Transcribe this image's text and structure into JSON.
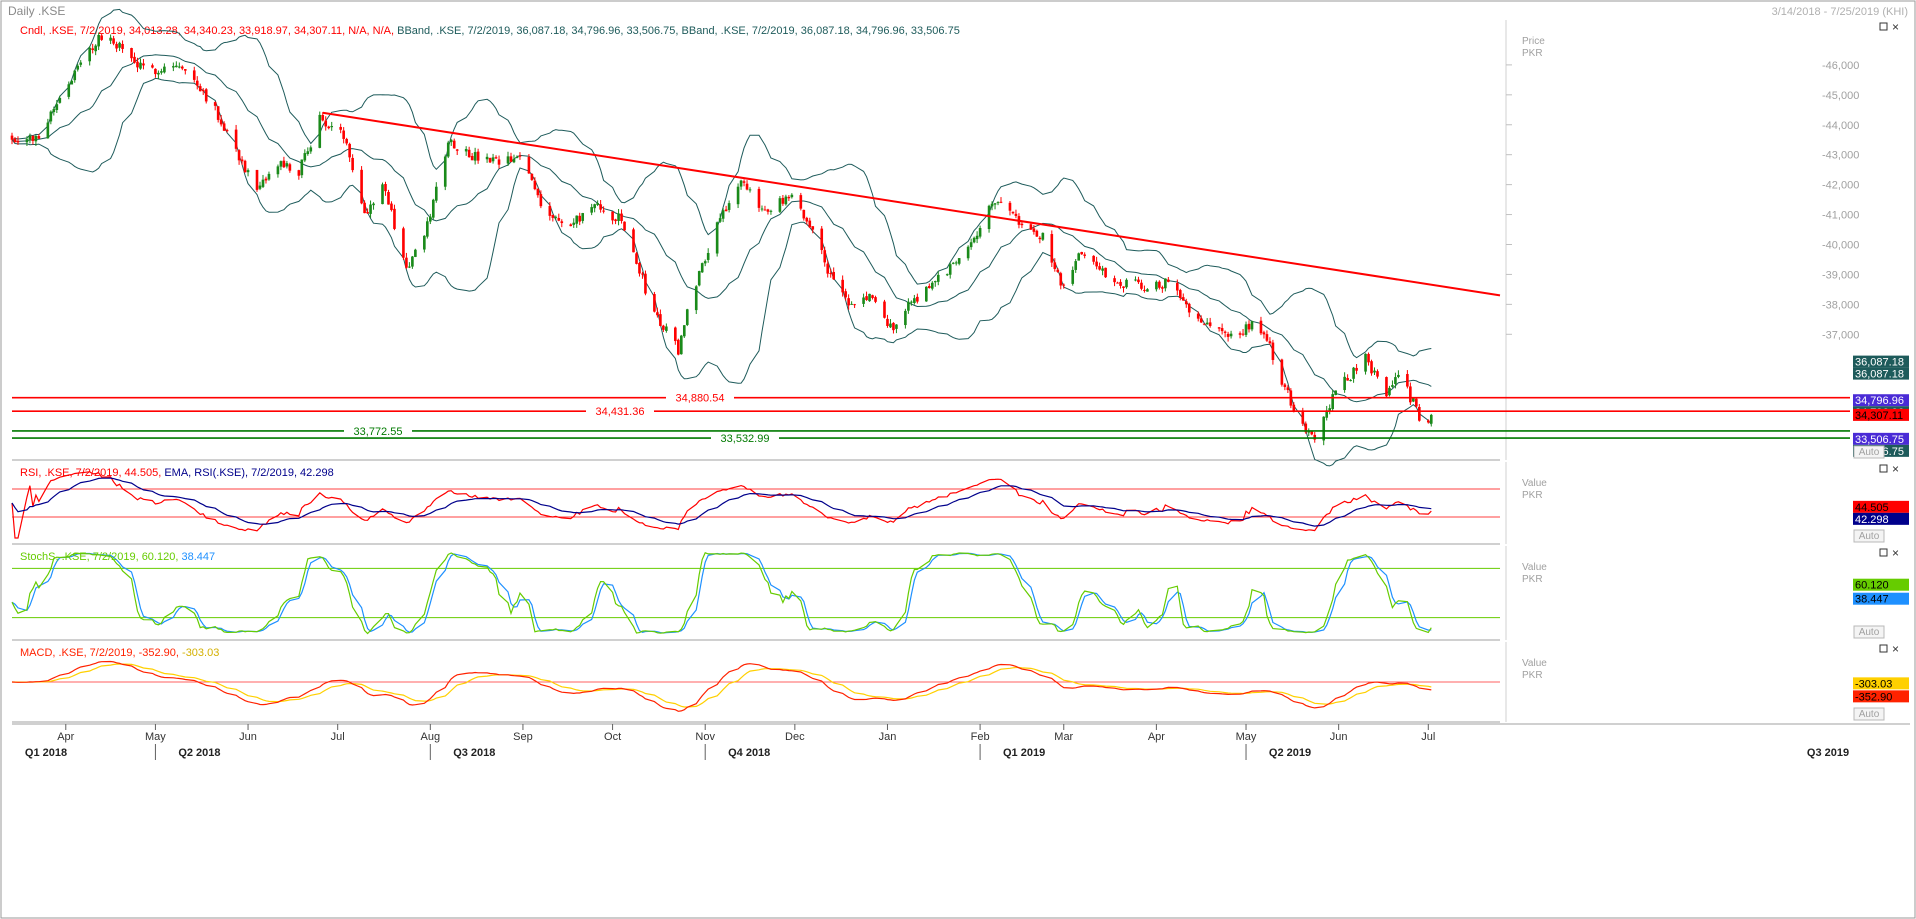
{
  "window": {
    "title": "Daily .KSE",
    "date_range": "3/14/2018 - 7/25/2019 (KHI)"
  },
  "colors": {
    "up_candle": "#1a8a1a",
    "down_candle": "#ff0000",
    "bband": "#1e5b5b",
    "resistance": "#ff0000",
    "support": "#007a00",
    "rsi": "#ff0000",
    "rsi_ema": "#00008b",
    "stoch_k": "#66cc00",
    "stoch_d": "#1e90ff",
    "macd": "#ff2200",
    "macd_signal": "#ffd000"
  },
  "chart_data": [
    {
      "type": "candlestick",
      "panel": "price",
      "legend": {
        "cndl": "Cndl, .KSE, 7/2/2019, 34,013.28, 34,340.23, 33,918.97, 34,307.11, N/A, N/A,",
        "bband1": "BBand, .KSE, 7/2/2019, 36,087.18, 34,796.96, 33,506.75,",
        "bband2": "BBand, .KSE, 7/2/2019, 36,087.18, 34,796.96, 33,506.75"
      },
      "axis_title": [
        "Price",
        "PKR"
      ],
      "ylim": [
        32800,
        47500
      ],
      "yticks": [
        37000,
        38000,
        39000,
        40000,
        41000,
        42000,
        43000,
        44000,
        45000,
        46000
      ],
      "last": {
        "date": "7/2/2019",
        "open": 34013.28,
        "high": 34340.23,
        "low": 33918.97,
        "close": 34307.11
      },
      "bband_last": {
        "upper": 36087.18,
        "middle": 34796.96,
        "lower": 33506.75
      },
      "close_path": [
        [
          "2018-03-14",
          43600
        ],
        [
          "2018-03-22",
          43500
        ],
        [
          "2018-04-01",
          45300
        ],
        [
          "2018-04-12",
          46900
        ],
        [
          "2018-04-18",
          46700
        ],
        [
          "2018-04-27",
          45800
        ],
        [
          "2018-05-08",
          46000
        ],
        [
          "2018-05-16",
          45300
        ],
        [
          "2018-05-25",
          43800
        ],
        [
          "2018-06-04",
          41700
        ],
        [
          "2018-06-11",
          42700
        ],
        [
          "2018-06-18",
          42400
        ],
        [
          "2018-06-25",
          44200
        ],
        [
          "2018-07-04",
          43500
        ],
        [
          "2018-07-10",
          41000
        ],
        [
          "2018-07-16",
          42100
        ],
        [
          "2018-07-24",
          39200
        ],
        [
          "2018-07-30",
          40200
        ],
        [
          "2018-08-07",
          43500
        ],
        [
          "2018-08-16",
          42900
        ],
        [
          "2018-08-24",
          42700
        ],
        [
          "2018-09-01",
          42900
        ],
        [
          "2018-09-08",
          41200
        ],
        [
          "2018-09-16",
          40500
        ],
        [
          "2018-09-24",
          41300
        ],
        [
          "2018-10-04",
          40800
        ],
        [
          "2018-10-15",
          37700
        ],
        [
          "2018-10-23",
          36500
        ],
        [
          "2018-10-28",
          38500
        ],
        [
          "2018-11-06",
          41000
        ],
        [
          "2018-11-13",
          42000
        ],
        [
          "2018-11-20",
          41200
        ],
        [
          "2018-11-30",
          41500
        ],
        [
          "2018-12-07",
          40500
        ],
        [
          "2018-12-14",
          38700
        ],
        [
          "2018-12-20",
          37900
        ],
        [
          "2018-12-26",
          38300
        ],
        [
          "2019-01-02",
          37200
        ],
        [
          "2019-01-10",
          38200
        ],
        [
          "2019-01-20",
          39000
        ],
        [
          "2019-01-30",
          40300
        ],
        [
          "2019-02-07",
          41600
        ],
        [
          "2019-02-14",
          40700
        ],
        [
          "2019-02-22",
          40200
        ],
        [
          "2019-03-01",
          38500
        ],
        [
          "2019-03-07",
          39800
        ],
        [
          "2019-03-17",
          38800
        ],
        [
          "2019-03-28",
          38600
        ],
        [
          "2019-04-04",
          38700
        ],
        [
          "2019-04-12",
          37900
        ],
        [
          "2019-04-20",
          37200
        ],
        [
          "2019-04-27",
          36900
        ],
        [
          "2019-05-03",
          37300
        ],
        [
          "2019-05-08",
          36800
        ],
        [
          "2019-05-14",
          35200
        ],
        [
          "2019-05-20",
          34000
        ],
        [
          "2019-05-25",
          33500
        ],
        [
          "2019-05-30",
          35000
        ],
        [
          "2019-06-05",
          35600
        ],
        [
          "2019-06-10",
          36300
        ],
        [
          "2019-06-16",
          35000
        ],
        [
          "2019-06-22",
          35600
        ],
        [
          "2019-06-29",
          34000
        ],
        [
          "2019-07-02",
          34307
        ]
      ],
      "trendline": {
        "from": [
          "2018-06-26",
          44400
        ],
        "to": [
          "2019-07-25",
          38300
        ]
      },
      "levels": [
        {
          "value": 34880.54,
          "label": "34,880.54",
          "kind": "resistance"
        },
        {
          "value": 34431.36,
          "label": "34,431.36",
          "kind": "resistance"
        },
        {
          "value": 33772.55,
          "label": "33,772.55",
          "kind": "support"
        },
        {
          "value": 33532.99,
          "label": "33,532.99",
          "kind": "support"
        }
      ],
      "right_labels": [
        {
          "value": 36087.18,
          "label": "36,087.18"
        },
        {
          "value": 36087.18,
          "label": "36,087.18"
        },
        {
          "value": 34796.96,
          "label": "34,796.96"
        },
        {
          "value": 34796.96,
          "label": "34,796.96"
        },
        {
          "value": 34307.11,
          "label": "34,307.11"
        },
        {
          "value": 33506.75,
          "label": "33,506.75"
        },
        {
          "value": 33506.75,
          "label": "33,506.75"
        }
      ],
      "auto_label": "Auto"
    },
    {
      "type": "line",
      "panel": "rsi",
      "legend": {
        "rsi": "RSI, .KSE, 7/2/2019, 44.505,",
        "ema": "EMA, RSI(.KSE), 7/2/2019, 42.298"
      },
      "axis_title": [
        "Value",
        "PKR"
      ],
      "ylim": [
        0,
        100
      ],
      "upper_band": 70,
      "lower_band": 30,
      "last": {
        "rsi": 44.505,
        "ema": 42.298
      },
      "right_labels": [
        "44.505",
        "42.298"
      ],
      "auto_label": "Auto"
    },
    {
      "type": "line",
      "panel": "stochastic",
      "legend": {
        "stoch": "StochS, .KSE, 7/2/2019, 60.120,",
        "d": "38.447"
      },
      "axis_title": [
        "Value",
        "PKR"
      ],
      "ylim": [
        0,
        100
      ],
      "upper_band": 80,
      "lower_band": 20,
      "last": {
        "k": 60.12,
        "d": 38.447
      },
      "right_labels": [
        "60.120",
        "38.447"
      ],
      "auto_label": "Auto"
    },
    {
      "type": "line",
      "panel": "macd",
      "legend": {
        "macd": "MACD, .KSE, 7/2/2019, -352.90,",
        "signal": "-303.03"
      },
      "axis_title": [
        "Value",
        "PKR"
      ],
      "ylim": [
        -1400,
        1400
      ],
      "zero_line": 0,
      "last": {
        "macd": -352.9,
        "signal": -303.03
      },
      "right_labels": [
        "-303.03",
        "-352.90"
      ],
      "auto_label": "Auto"
    }
  ],
  "x_axis": {
    "months": [
      [
        "2018-04-01",
        "Apr"
      ],
      [
        "2018-05-01",
        "May"
      ],
      [
        "2018-06-01",
        "Jun"
      ],
      [
        "2018-07-01",
        "Jul"
      ],
      [
        "2018-08-01",
        "Aug"
      ],
      [
        "2018-09-01",
        "Sep"
      ],
      [
        "2018-10-01",
        "Oct"
      ],
      [
        "2018-11-01",
        "Nov"
      ],
      [
        "2018-12-01",
        "Dec"
      ],
      [
        "2019-01-01",
        "Jan"
      ],
      [
        "2019-02-01",
        "Feb"
      ],
      [
        "2019-03-01",
        "Mar"
      ],
      [
        "2019-04-01",
        "Apr"
      ],
      [
        "2019-05-01",
        "May"
      ],
      [
        "2019-06-01",
        "Jun"
      ],
      [
        "2019-07-01",
        "Jul"
      ]
    ],
    "quarters": [
      [
        "2018-03-14",
        "Q1 2018"
      ],
      [
        "2018-05-01",
        "Q2 2018"
      ],
      [
        "2018-08-01",
        "Q3 2018"
      ],
      [
        "2018-11-01",
        "Q4 2018"
      ],
      [
        "2019-02-01",
        "Q1 2019"
      ],
      [
        "2019-05-01",
        "Q2 2019"
      ],
      [
        "2019-07-25",
        "Q3 2019"
      ]
    ],
    "range": [
      "2018-03-14",
      "2019-07-25"
    ]
  }
}
